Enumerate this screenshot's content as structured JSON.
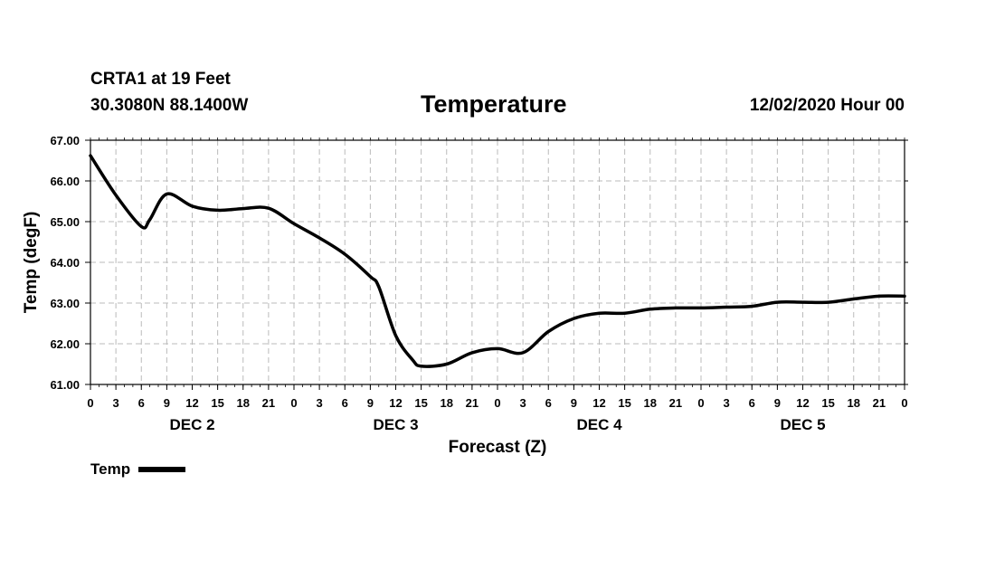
{
  "header": {
    "station": "CRTA1 at 19 Feet",
    "coords": "30.3080N 88.1400W",
    "title": "Temperature",
    "date": "12/02/2020 Hour 00"
  },
  "chart_data": {
    "type": "line",
    "title": "Temperature",
    "xlabel": "Forecast (Z)",
    "ylabel": "Temp (degF)",
    "ylim": [
      61.0,
      67.0
    ],
    "xlim": [
      0,
      96
    ],
    "y_ticks": [
      "61.00",
      "62.00",
      "63.00",
      "64.00",
      "65.00",
      "66.00",
      "67.00"
    ],
    "x_tick_hours": [
      0,
      3,
      6,
      9,
      12,
      15,
      18,
      21,
      24,
      27,
      30,
      33,
      36,
      39,
      42,
      45,
      48,
      51,
      54,
      57,
      60,
      63,
      66,
      69,
      72,
      75,
      78,
      81,
      84,
      87,
      90,
      93,
      96
    ],
    "x_tick_labels": [
      "0",
      "3",
      "6",
      "9",
      "12",
      "15",
      "18",
      "21",
      "0",
      "3",
      "6",
      "9",
      "12",
      "15",
      "18",
      "21",
      "0",
      "3",
      "6",
      "9",
      "12",
      "15",
      "18",
      "21",
      "0",
      "3",
      "6",
      "9",
      "12",
      "15",
      "18",
      "21",
      "0"
    ],
    "day_labels": [
      {
        "hour": 12,
        "label": "DEC 2"
      },
      {
        "hour": 36,
        "label": "DEC 3"
      },
      {
        "hour": 60,
        "label": "DEC 4"
      },
      {
        "hour": 84,
        "label": "DEC 5"
      }
    ],
    "grid": true,
    "legend_position": "bottom-left",
    "series": [
      {
        "name": "Temp",
        "color": "#000000",
        "x": [
          0,
          3,
          6,
          7,
          9,
          12,
          15,
          18,
          21,
          24,
          27,
          30,
          33,
          34,
          36,
          38,
          39,
          42,
          45,
          48,
          51,
          54,
          57,
          60,
          63,
          66,
          69,
          72,
          75,
          78,
          81,
          84,
          87,
          90,
          93,
          96
        ],
        "values": [
          66.62,
          65.65,
          64.88,
          65.05,
          65.68,
          65.38,
          65.28,
          65.32,
          65.33,
          64.95,
          64.6,
          64.2,
          63.65,
          63.4,
          62.2,
          61.6,
          61.45,
          61.5,
          61.78,
          61.88,
          61.78,
          62.3,
          62.62,
          62.75,
          62.75,
          62.85,
          62.88,
          62.88,
          62.9,
          62.92,
          63.02,
          63.02,
          63.02,
          63.1,
          63.17,
          63.17
        ]
      }
    ]
  },
  "legend": {
    "label": "Temp"
  }
}
